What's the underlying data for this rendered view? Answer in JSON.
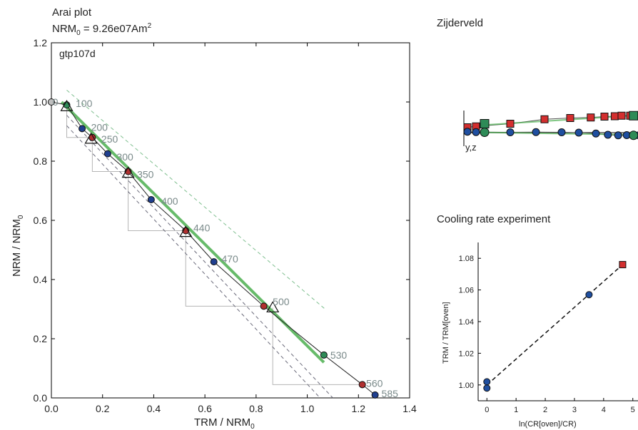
{
  "chart_data": [
    {
      "type": "scatter",
      "title": "Arai plot",
      "subtitle": "NRM",
      "subtitle_sub": "0",
      "subtitle_rest": " = 9.26e07Am",
      "subtitle_sup": "2",
      "specimen": "gtp107d",
      "xlabel": "TRM  / NRM",
      "xlabel_sub": "0",
      "ylabel": "NRM / NRM",
      "ylabel_sub": "0",
      "xlim": [
        0,
        1.4
      ],
      "ylim": [
        0,
        1.2
      ],
      "xticks": [
        "0.0",
        "0.2",
        "0.4",
        "0.6",
        "0.8",
        "1.0",
        "1.2",
        "1.4"
      ],
      "yticks": [
        "0.0",
        "0.2",
        "0.4",
        "0.6",
        "0.8",
        "1.0",
        "1.2"
      ],
      "points": [
        {
          "x": 0.0,
          "y": 1.0,
          "color": "#c0c0c0"
        },
        {
          "x": 0.06,
          "y": 0.99,
          "color": "#2e8b57"
        },
        {
          "x": 0.12,
          "y": 0.91,
          "color": "#1f3f8f"
        },
        {
          "x": 0.16,
          "y": 0.88,
          "color": "#b03030"
        },
        {
          "x": 0.22,
          "y": 0.825,
          "color": "#1f3f8f"
        },
        {
          "x": 0.3,
          "y": 0.765,
          "color": "#b03030"
        },
        {
          "x": 0.39,
          "y": 0.67,
          "color": "#1f3f8f"
        },
        {
          "x": 0.525,
          "y": 0.565,
          "color": "#b03030"
        },
        {
          "x": 0.635,
          "y": 0.46,
          "color": "#1f3f8f"
        },
        {
          "x": 0.83,
          "y": 0.31,
          "color": "#b03030"
        },
        {
          "x": 1.065,
          "y": 0.145,
          "color": "#2e8b57"
        },
        {
          "x": 1.215,
          "y": 0.045,
          "color": "#b03030"
        },
        {
          "x": 1.265,
          "y": 0.01,
          "color": "#1f3f8f"
        }
      ],
      "temperature_labels": [
        {
          "text": "0",
          "x": 0.005,
          "y": 1.0
        },
        {
          "text": "100",
          "x": 0.095,
          "y": 0.995
        },
        {
          "text": "200",
          "x": 0.155,
          "y": 0.915
        },
        {
          "text": "250",
          "x": 0.195,
          "y": 0.875
        },
        {
          "text": "300",
          "x": 0.255,
          "y": 0.815
        },
        {
          "text": "350",
          "x": 0.335,
          "y": 0.755
        },
        {
          "text": "400",
          "x": 0.43,
          "y": 0.665
        },
        {
          "text": "440",
          "x": 0.555,
          "y": 0.575
        },
        {
          "text": "470",
          "x": 0.665,
          "y": 0.47
        },
        {
          "text": "500",
          "x": 0.865,
          "y": 0.325
        },
        {
          "text": "530",
          "x": 1.09,
          "y": 0.145
        },
        {
          "text": "560",
          "x": 1.23,
          "y": 0.05
        },
        {
          "text": "585",
          "x": 1.29,
          "y": 0.015
        }
      ],
      "ptrm_checks": [
        {
          "x": 0.06,
          "y": 0.985
        },
        {
          "x": 0.155,
          "y": 0.875
        },
        {
          "x": 0.3,
          "y": 0.76
        },
        {
          "x": 0.525,
          "y": 0.56
        },
        {
          "x": 0.865,
          "y": 0.305
        }
      ],
      "check_steps": [
        {
          "from": [
            0.06,
            0.99
          ],
          "to": [
            0.06,
            0.88
          ],
          "end": [
            0.16,
            0.88
          ]
        },
        {
          "from": [
            0.16,
            0.88
          ],
          "to": [
            0.16,
            0.765
          ],
          "end": [
            0.3,
            0.765
          ]
        },
        {
          "from": [
            0.3,
            0.765
          ],
          "to": [
            0.3,
            0.565
          ],
          "end": [
            0.525,
            0.565
          ]
        },
        {
          "from": [
            0.525,
            0.565
          ],
          "to": [
            0.525,
            0.31
          ],
          "end": [
            0.83,
            0.31
          ]
        },
        {
          "from": [
            0.865,
            0.305
          ],
          "to": [
            0.865,
            0.045
          ],
          "end": [
            1.215,
            0.045
          ]
        }
      ],
      "fit_line": {
        "x": [
          0.04,
          1.065
        ],
        "y": [
          1.0,
          0.12
        ],
        "color": "#4caf50"
      },
      "envelope_upper": {
        "x": [
          0.06,
          1.07
        ],
        "y": [
          1.04,
          0.3
        ]
      },
      "envelope_lower": {
        "x": [
          0.06,
          1.1
        ],
        "y": [
          0.955,
          0.0
        ]
      },
      "envelope_lower2": {
        "x": [
          0.06,
          1.05
        ],
        "y": [
          0.92,
          0.0
        ]
      }
    },
    {
      "type": "scatter",
      "title": "Zijderveld",
      "axis_label": "y,z",
      "series": [
        {
          "marker": "square",
          "color": "#d32f2f",
          "x": [
            0,
            0.05,
            0.25,
            0.45,
            0.6,
            0.72,
            0.8,
            0.86,
            0.9,
            0.95,
            1.0
          ],
          "y": [
            0.3,
            0.35,
            0.5,
            0.75,
            0.82,
            0.85,
            0.9,
            0.92,
            0.95,
            0.95,
            0.98
          ]
        },
        {
          "marker": "circle",
          "color": "#1f4fa0",
          "x": [
            0,
            0.05,
            0.25,
            0.4,
            0.55,
            0.65,
            0.75,
            0.82,
            0.88,
            0.93,
            1.0
          ],
          "y": [
            0.05,
            0.03,
            0.02,
            0.03,
            0.02,
            0.0,
            -0.05,
            -0.12,
            -0.15,
            -0.14,
            -0.15
          ]
        }
      ]
    },
    {
      "type": "scatter",
      "title": "Cooling rate experiment",
      "xlabel": "ln(CR[oven]/CR)",
      "ylabel": "TRM / TRM[oven]",
      "xlim": [
        -0.3,
        5.3
      ],
      "ylim": [
        0.99,
        1.09
      ],
      "xticks": [
        "0",
        "1",
        "2",
        "3",
        "4",
        "5"
      ],
      "yticks": [
        "1.00",
        "1.02",
        "1.04",
        "1.06",
        "1.08"
      ],
      "points": [
        {
          "x": 0.0,
          "y": 1.002,
          "color": "#1f4fa0",
          "marker": "circle"
        },
        {
          "x": 0.0,
          "y": 0.998,
          "color": "#1f4fa0",
          "marker": "circle"
        },
        {
          "x": 3.5,
          "y": 1.057,
          "color": "#1f4fa0",
          "marker": "circle"
        },
        {
          "x": 4.65,
          "y": 1.076,
          "color": "#d32f2f",
          "marker": "square"
        }
      ],
      "fit_line": {
        "x": [
          0.0,
          4.65
        ],
        "y": [
          1.0,
          1.076
        ]
      }
    }
  ]
}
